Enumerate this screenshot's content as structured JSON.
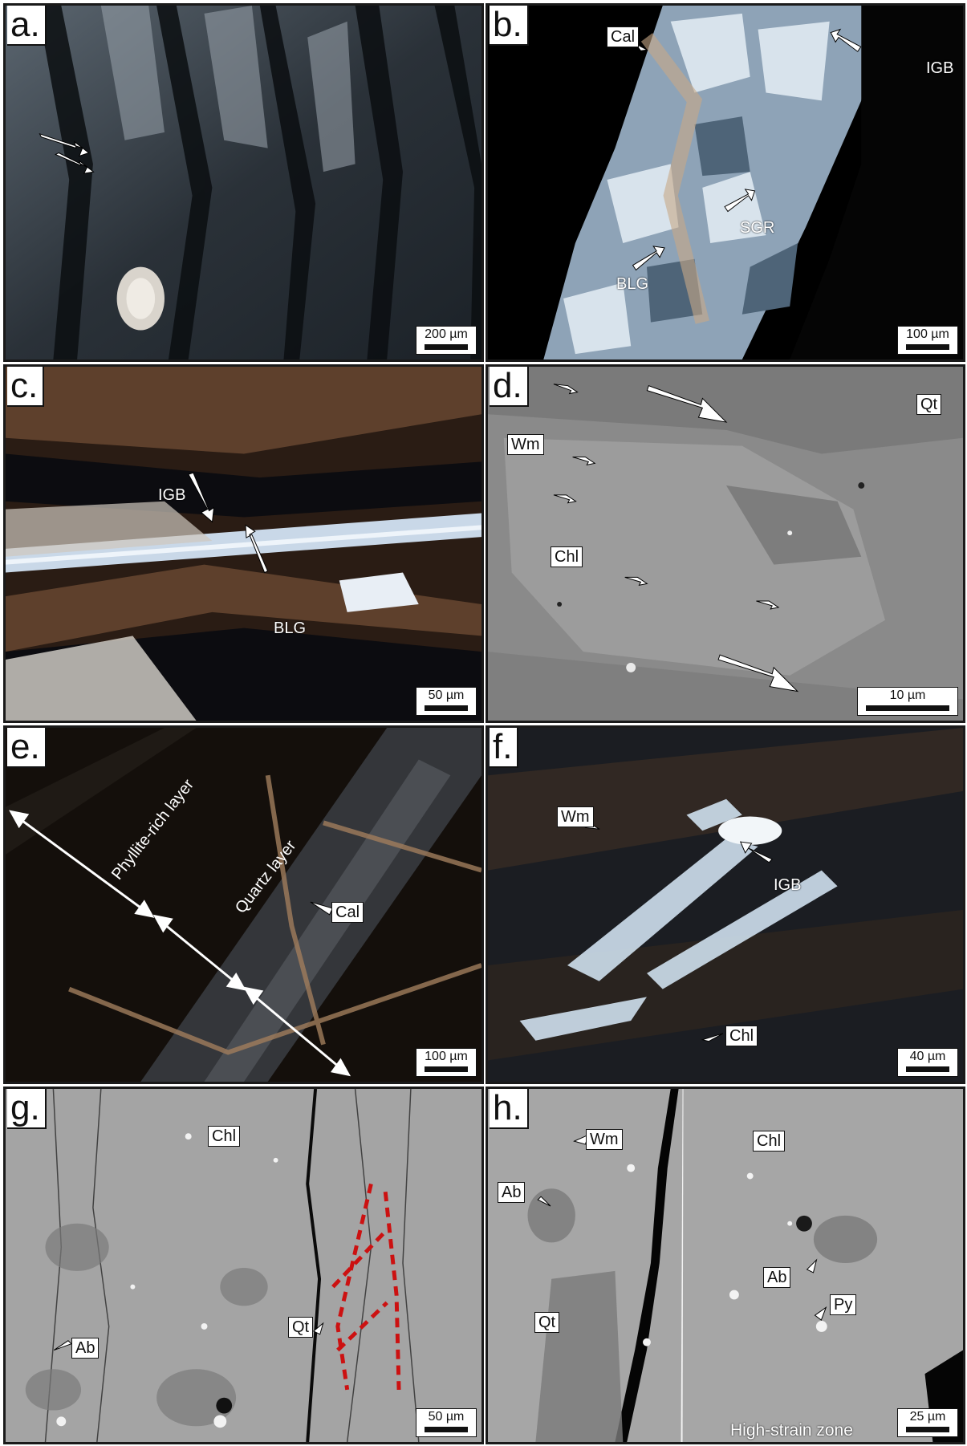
{
  "panels": {
    "a": {
      "letter": "a.",
      "scale": "200 µm"
    },
    "b": {
      "letter": "b.",
      "labels": {
        "cal": "Cal",
        "igb": "IGB",
        "sgr": "SGR",
        "blg": "BLG"
      },
      "scale": "100 µm"
    },
    "c": {
      "letter": "c.",
      "labels": {
        "igb": "IGB",
        "blg": "BLG"
      },
      "scale": "50 µm"
    },
    "d": {
      "letter": "d.",
      "labels": {
        "qt": "Qt",
        "wm": "Wm",
        "chl": "Chl"
      },
      "scale": "10 µm"
    },
    "e": {
      "letter": "e.",
      "labels": {
        "phyllite": "Phyllite-rich layer",
        "quartz": "Quartz layer",
        "cal": "Cal"
      },
      "scale": "100 µm"
    },
    "f": {
      "letter": "f.",
      "labels": {
        "wm": "Wm",
        "igb": "IGB",
        "chl": "Chl"
      },
      "scale": "40 µm"
    },
    "g": {
      "letter": "g.",
      "labels": {
        "chl": "Chl",
        "qt": "Qt",
        "ab": "Ab"
      },
      "scale": "50 µm"
    },
    "h": {
      "letter": "h.",
      "labels": {
        "wm": "Wm",
        "chl": "Chl",
        "ab1": "Ab",
        "ab2": "Ab",
        "qt": "Qt",
        "py": "Py",
        "strain": "High-strain zone"
      },
      "scale": "25 µm"
    }
  }
}
